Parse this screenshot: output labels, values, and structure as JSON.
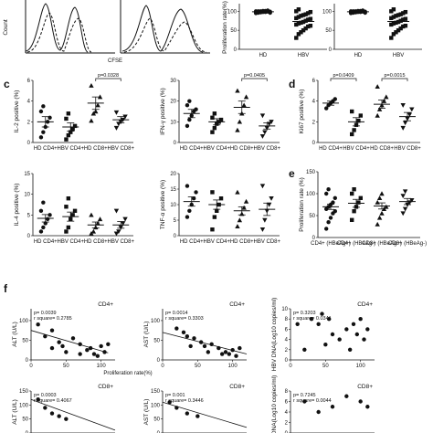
{
  "panel_labels": {
    "c": "c",
    "d": "d",
    "e": "e",
    "f": "f"
  },
  "top_row": {
    "flow_ylabel": "Count",
    "flow_xlabel": "CFSE",
    "prolif_ylabel": "Proliferation rate(%)",
    "prolif_xcats": [
      "HD",
      "HBV"
    ],
    "prolif_yticks": [
      "100",
      "50",
      "0"
    ]
  },
  "chart_data": [
    {
      "id": "c1",
      "type": "scatter",
      "ylabel": "IL-2 positive (%)",
      "categories": [
        "HD CD4+",
        "HBV CD4+",
        "HD CD8+",
        "HBV CD8+"
      ],
      "yticks": [
        0,
        2,
        4,
        6
      ],
      "ylim": [
        0,
        6
      ],
      "markers": [
        "circle",
        "square",
        "triangle",
        "triangle-down"
      ],
      "points": [
        [
          0.5,
          1.0,
          1.5,
          2.0,
          2.4,
          3.0,
          3.5
        ],
        [
          0.3,
          0.7,
          1.0,
          1.3,
          1.6,
          2.3,
          2.8
        ],
        [
          2.1,
          2.8,
          3.0,
          3.6,
          4.4,
          5.5
        ],
        [
          1.4,
          1.8,
          2.0,
          2.2,
          2.5,
          2.9
        ]
      ],
      "means": [
        2.0,
        1.5,
        3.8,
        2.2
      ],
      "sems": [
        0.5,
        0.4,
        0.6,
        0.3
      ],
      "bracket": {
        "from": 2,
        "to": 3,
        "label": "p=0.0328"
      }
    },
    {
      "id": "c2",
      "type": "scatter",
      "ylabel": "IFN-γ positive (%)",
      "categories": [
        "HD CD4+",
        "HBV CD4+",
        "HD CD8+",
        "HBV CD8+"
      ],
      "yticks": [
        0,
        10,
        20,
        30
      ],
      "ylim": [
        0,
        30
      ],
      "markers": [
        "circle",
        "square",
        "triangle",
        "triangle-down"
      ],
      "points": [
        [
          8,
          11,
          13,
          15,
          16,
          18,
          20
        ],
        [
          5,
          7,
          9,
          10,
          11,
          12,
          14
        ],
        [
          6,
          10,
          14,
          18,
          22,
          25
        ],
        [
          3,
          5,
          7,
          9,
          10,
          13
        ]
      ],
      "means": [
        14,
        10,
        17,
        8
      ],
      "sems": [
        2,
        1.5,
        3,
        1.5
      ],
      "bracket": {
        "from": 2,
        "to": 3,
        "label": "p=0.0405"
      }
    },
    {
      "id": "d",
      "type": "scatter",
      "ylabel": "Ki67 positive (%)",
      "categories": [
        "HD CD4+",
        "HBV CD4+",
        "HD CD8+",
        "HBV CD8+"
      ],
      "yticks": [
        0,
        2,
        4,
        6
      ],
      "ylim": [
        0,
        6
      ],
      "markers": [
        "circle",
        "square",
        "triangle",
        "triangle-down"
      ],
      "points": [
        [
          3.3,
          3.6,
          3.8,
          4.0,
          4.2
        ],
        [
          0.8,
          1.2,
          1.7,
          2.1,
          2.6,
          3.0
        ],
        [
          2.6,
          3.2,
          3.6,
          4.0,
          4.4,
          5.4
        ],
        [
          1.4,
          1.9,
          2.3,
          2.7,
          3.2,
          3.6
        ]
      ],
      "means": [
        3.8,
        2.0,
        3.7,
        2.5
      ],
      "sems": [
        0.2,
        0.4,
        0.4,
        0.4
      ],
      "brackets": [
        {
          "from": 0,
          "to": 1,
          "label": "p=0.0409"
        },
        {
          "from": 2,
          "to": 3,
          "label": "p=0.0015"
        }
      ]
    },
    {
      "id": "c3",
      "type": "scatter",
      "ylabel": "IL-4 positive (%)",
      "categories": [
        "HD CD4+",
        "HBV CD4+",
        "HD CD8+",
        "HBV CD8+"
      ],
      "yticks": [
        0,
        5,
        10,
        15
      ],
      "ylim": [
        0,
        15
      ],
      "markers": [
        "circle",
        "square",
        "triangle",
        "triangle-down"
      ],
      "points": [
        [
          1,
          2,
          3,
          4,
          5,
          6,
          8
        ],
        [
          1,
          2,
          4,
          5,
          6,
          7,
          9
        ],
        [
          0.5,
          1,
          2,
          3,
          4,
          5
        ],
        [
          0.5,
          1,
          2,
          3,
          4,
          6
        ]
      ],
      "means": [
        4.2,
        4.6,
        2.6,
        2.6
      ],
      "sems": [
        0.9,
        1.1,
        0.7,
        0.8
      ]
    },
    {
      "id": "c4",
      "type": "scatter",
      "ylabel": "TNF-α positive (%)",
      "categories": [
        "HD CD4+",
        "HBV CD4+",
        "HD CD8+",
        "HBV CD8+"
      ],
      "yticks": [
        0,
        5,
        10,
        15,
        20
      ],
      "ylim": [
        0,
        20
      ],
      "markers": [
        "circle",
        "square",
        "triangle",
        "triangle-down"
      ],
      "points": [
        [
          6,
          8,
          10,
          12,
          14,
          16
        ],
        [
          2,
          6,
          8,
          10,
          12,
          14
        ],
        [
          3,
          5,
          7,
          9,
          11,
          14
        ],
        [
          2,
          5,
          8,
          10,
          12,
          16
        ]
      ],
      "means": [
        11,
        10,
        8,
        8.5
      ],
      "sems": [
        1.5,
        1.5,
        1.3,
        2.0
      ]
    },
    {
      "id": "e",
      "type": "scatter",
      "ylabel": "Proliferation rate (%)",
      "categories": [
        "CD4+ (HBeAg+)",
        "CD4+ (HBeAg-)",
        "CD8+ (HBeAg+)",
        "CD8+ (HBeAg-)"
      ],
      "yticks": [
        0,
        50,
        100,
        150
      ],
      "ylim": [
        0,
        150
      ],
      "markers": [
        "circle",
        "square",
        "triangle",
        "triangle-down"
      ],
      "points": [
        [
          20,
          35,
          45,
          55,
          60,
          65,
          70,
          75,
          80,
          90,
          100,
          110
        ],
        [
          40,
          60,
          70,
          80,
          90,
          100,
          110
        ],
        [
          30,
          45,
          55,
          65,
          70,
          80,
          90,
          100
        ],
        [
          55,
          65,
          75,
          80,
          85,
          95,
          105
        ]
      ],
      "means": [
        70,
        78,
        72,
        82
      ],
      "sems": [
        6,
        9,
        7,
        7
      ]
    },
    {
      "id": "f1",
      "type": "scatter",
      "title": "CD4+",
      "ylabel": "ALT (U/L)",
      "annotation": [
        "p= 0.0039",
        "r square= 0.2785"
      ],
      "yticks": [
        0,
        50,
        100
      ],
      "xlim": [
        0,
        120
      ],
      "ylim": [
        0,
        130
      ],
      "markers": [
        "circle"
      ],
      "points_xy": [
        [
          10,
          90
        ],
        [
          20,
          60
        ],
        [
          30,
          75
        ],
        [
          40,
          45
        ],
        [
          45,
          35
        ],
        [
          50,
          20
        ],
        [
          60,
          55
        ],
        [
          70,
          40
        ],
        [
          80,
          25
        ],
        [
          85,
          30
        ],
        [
          90,
          15
        ],
        [
          95,
          10
        ],
        [
          100,
          35
        ],
        [
          105,
          20
        ],
        [
          110,
          40
        ],
        [
          30,
          30
        ],
        [
          70,
          15
        ]
      ],
      "fit": [
        [
          0,
          75
        ],
        [
          110,
          18
        ]
      ]
    },
    {
      "id": "f2",
      "type": "scatter",
      "title": "CD4+",
      "ylabel": "AST (U/L)",
      "annotation": [
        "p= 0.0014",
        "r square= 0.3303"
      ],
      "yticks": [
        0,
        50,
        100
      ],
      "xlim": [
        0,
        120
      ],
      "ylim": [
        0,
        130
      ],
      "markers": [
        "circle"
      ],
      "points_xy": [
        [
          20,
          80
        ],
        [
          30,
          70
        ],
        [
          35,
          60
        ],
        [
          45,
          55
        ],
        [
          55,
          45
        ],
        [
          60,
          35
        ],
        [
          70,
          40
        ],
        [
          80,
          30
        ],
        [
          90,
          20
        ],
        [
          95,
          15
        ],
        [
          100,
          25
        ],
        [
          105,
          10
        ],
        [
          110,
          30
        ],
        [
          40,
          35
        ],
        [
          65,
          20
        ],
        [
          85,
          15
        ]
      ],
      "fit": [
        [
          0,
          70
        ],
        [
          120,
          15
        ]
      ]
    },
    {
      "id": "f3",
      "type": "scatter",
      "title": "CD4+",
      "ylabel": "HBV DNA(Log10 copies/ml)",
      "annotation": [
        "p= 0.3203",
        "r square= 0.0341"
      ],
      "yticks": [
        0,
        2,
        4,
        6,
        8,
        10
      ],
      "xlim": [
        0,
        120
      ],
      "ylim": [
        0,
        10
      ],
      "markers": [
        "circle"
      ],
      "points_xy": [
        [
          10,
          7
        ],
        [
          20,
          2
        ],
        [
          30,
          8
        ],
        [
          40,
          7
        ],
        [
          50,
          3
        ],
        [
          55,
          8
        ],
        [
          60,
          5
        ],
        [
          70,
          4
        ],
        [
          80,
          6
        ],
        [
          85,
          2
        ],
        [
          90,
          7
        ],
        [
          95,
          5
        ],
        [
          100,
          8
        ],
        [
          105,
          4
        ],
        [
          110,
          6
        ],
        [
          45,
          9
        ]
      ]
    },
    {
      "id": "f4",
      "type": "scatter",
      "title": "CD8+",
      "ylabel": "ALT (U/L)",
      "annotation": [
        "p= 0.0003",
        "r square= 0.4067"
      ],
      "yticks": [
        0,
        50,
        100,
        150
      ],
      "xlim": [
        0,
        120
      ],
      "ylim": [
        0,
        150
      ],
      "markers": [
        "circle"
      ],
      "points_xy": [
        [
          10,
          120
        ],
        [
          20,
          90
        ],
        [
          30,
          70
        ],
        [
          40,
          60
        ],
        [
          50,
          50
        ]
      ],
      "fit": [
        [
          0,
          120
        ],
        [
          120,
          10
        ]
      ]
    },
    {
      "id": "f5",
      "type": "scatter",
      "title": "CD8+",
      "ylabel": "AST (U/L)",
      "annotation": [
        "p= 0.001",
        "r square= 0.3446"
      ],
      "yticks": [
        0,
        50,
        100,
        150
      ],
      "xlim": [
        0,
        120
      ],
      "ylim": [
        0,
        150
      ],
      "markers": [
        "circle"
      ],
      "points_xy": [
        [
          10,
          110
        ],
        [
          20,
          90
        ],
        [
          35,
          70
        ],
        [
          50,
          60
        ]
      ],
      "fit": [
        [
          0,
          110
        ],
        [
          120,
          20
        ]
      ]
    },
    {
      "id": "f6",
      "type": "scatter",
      "title": "CD8+",
      "ylabel": "HBV DNA(Log10 copies/ml)",
      "annotation": [
        "p= 0.7245",
        "r square= 0.0044"
      ],
      "yticks": [
        0,
        2,
        4,
        6,
        8
      ],
      "xlim": [
        0,
        120
      ],
      "ylim": [
        0,
        8
      ],
      "markers": [
        "circle"
      ],
      "points_xy": [
        [
          20,
          6
        ],
        [
          40,
          4
        ],
        [
          60,
          5
        ],
        [
          80,
          7
        ],
        [
          100,
          6
        ],
        [
          110,
          5
        ]
      ]
    }
  ],
  "shared_xlabel": "Proliferation rate(%)"
}
